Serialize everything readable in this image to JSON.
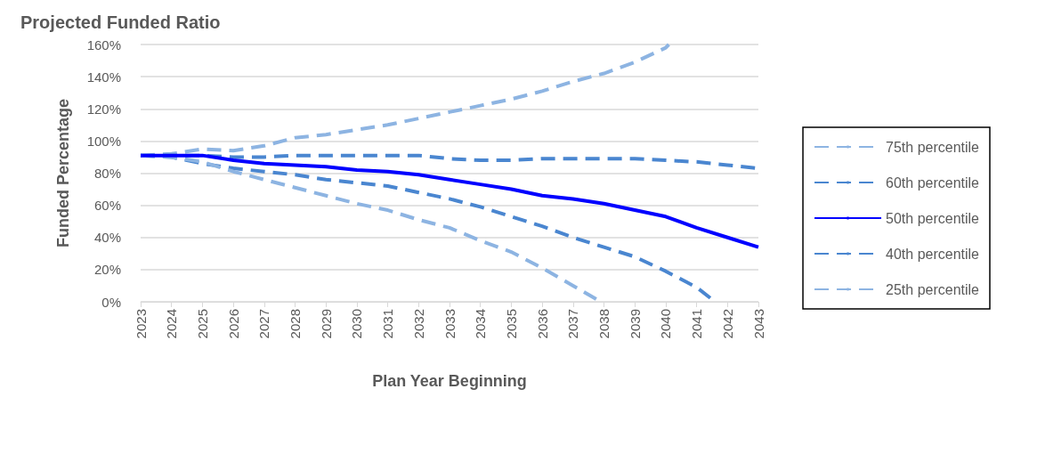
{
  "chart_data": {
    "type": "line",
    "title": "Projected Funded Ratio",
    "xlabel": "Plan Year Beginning",
    "ylabel": "Funded Percentage",
    "x": [
      2023,
      2024,
      2025,
      2026,
      2027,
      2028,
      2029,
      2030,
      2031,
      2032,
      2033,
      2034,
      2035,
      2036,
      2037,
      2038,
      2039,
      2040,
      2041,
      2042,
      2043
    ],
    "series": [
      {
        "name": "75th percentile",
        "color": "#8db4e2",
        "line_style": "dashed",
        "x": [
          2023,
          2024,
          2025,
          2026,
          2027,
          2028,
          2029,
          2030,
          2031,
          2032,
          2033,
          2034,
          2035,
          2036,
          2037,
          2038,
          2039,
          2040,
          2040.1
        ],
        "values": [
          91,
          92,
          95,
          94,
          97,
          102,
          104,
          107,
          110,
          114,
          118,
          122,
          126,
          131,
          137,
          142,
          149,
          158,
          160
        ]
      },
      {
        "name": "60th percentile",
        "color": "#4a86d0",
        "line_style": "dashed",
        "values": [
          91,
          91,
          91,
          90,
          90,
          91,
          91,
          91,
          91,
          91,
          89,
          88,
          88,
          89,
          89,
          89,
          89,
          88,
          87,
          85,
          83
        ]
      },
      {
        "name": "50th percentile",
        "color": "#0000ff",
        "line_style": "solid",
        "values": [
          91,
          91,
          91,
          88,
          86,
          85,
          84,
          82,
          81,
          79,
          76,
          73,
          70,
          66,
          64,
          61,
          57,
          53,
          46,
          40,
          34
        ]
      },
      {
        "name": "40th percentile",
        "color": "#4a86d0",
        "line_style": "dashed",
        "x": [
          2023,
          2024,
          2025,
          2026,
          2027,
          2028,
          2029,
          2030,
          2031,
          2032,
          2033,
          2034,
          2035,
          2036,
          2037,
          2038,
          2039,
          2040,
          2041,
          2041.6
        ],
        "values": [
          91,
          90,
          86,
          83,
          81,
          79,
          76,
          74,
          72,
          68,
          64,
          59,
          53,
          47,
          40,
          34,
          28,
          19,
          9,
          0
        ]
      },
      {
        "name": "25th percentile",
        "color": "#8db4e2",
        "line_style": "dashed",
        "x": [
          2023,
          2024,
          2025,
          2026,
          2027,
          2028,
          2029,
          2030,
          2031,
          2032,
          2033,
          2034,
          2035,
          2036,
          2037,
          2037.9
        ],
        "values": [
          91,
          90,
          87,
          81,
          76,
          71,
          66,
          61,
          57,
          51,
          46,
          38,
          31,
          21,
          10,
          0
        ]
      }
    ],
    "xlim": [
      2023,
      2043
    ],
    "xticks": [
      2023,
      2024,
      2025,
      2026,
      2027,
      2028,
      2029,
      2030,
      2031,
      2032,
      2033,
      2034,
      2035,
      2036,
      2037,
      2038,
      2039,
      2040,
      2041,
      2042,
      2043
    ],
    "ylim": [
      0,
      160
    ],
    "yticks": [
      {
        "value": 0,
        "label": "0%"
      },
      {
        "value": 20,
        "label": "20%"
      },
      {
        "value": 40,
        "label": "40%"
      },
      {
        "value": 60,
        "label": "60%"
      },
      {
        "value": 80,
        "label": "80%"
      },
      {
        "value": 100,
        "label": "100%"
      },
      {
        "value": 120,
        "label": "120%"
      },
      {
        "value": 140,
        "label": "140%"
      },
      {
        "value": 160,
        "label": "160%"
      }
    ],
    "grid": "y",
    "legend": "right",
    "marker": "none"
  }
}
